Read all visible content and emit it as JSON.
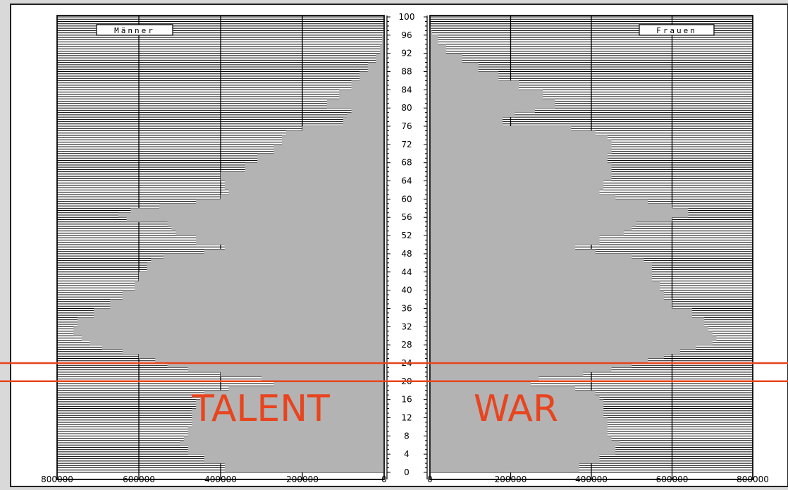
{
  "chart_data": {
    "type": "bar",
    "orientation": "horizontal",
    "layout": "population-pyramid",
    "left_panel_label": "Männer",
    "right_panel_label": "Frauen",
    "y_ticks": [
      "0",
      "4",
      "8",
      "12",
      "16",
      "20",
      "24",
      "28",
      "32",
      "36",
      "40",
      "44",
      "48",
      "52",
      "56",
      "60",
      "64",
      "68",
      "72",
      "76",
      "80",
      "84",
      "88",
      "92",
      "96",
      "100"
    ],
    "left_x_ticks": [
      "800000",
      "600000",
      "400000",
      "200000",
      "0"
    ],
    "right_x_ticks": [
      "0",
      "200000",
      "400000",
      "600000",
      "800000"
    ],
    "x_range": [
      0,
      800000
    ],
    "age_range": [
      0,
      100
    ],
    "grid": true,
    "bar_color": "#b3b3b3",
    "series": [
      {
        "name": "Männer",
        "age_points": [
          0,
          2,
          4,
          6,
          7,
          8,
          10,
          12,
          14,
          16,
          17,
          18,
          19,
          20,
          21,
          22,
          23,
          24,
          25,
          26,
          27,
          28,
          29,
          30,
          31,
          32,
          34,
          36,
          38,
          40,
          42,
          44,
          46,
          47,
          48,
          49,
          50,
          52,
          53,
          54,
          55,
          56,
          57,
          58,
          59,
          60,
          61,
          62,
          64,
          66,
          68,
          70,
          72,
          73,
          74,
          75,
          76,
          77,
          78,
          79,
          80,
          82,
          84,
          86,
          88,
          90,
          92,
          94,
          96,
          97,
          98
        ],
        "values": [
          390000,
          440000,
          480000,
          500000,
          490000,
          480000,
          470000,
          470000,
          460000,
          450000,
          440000,
          380000,
          270000,
          300000,
          400000,
          480000,
          530000,
          560000,
          600000,
          640000,
          690000,
          720000,
          740000,
          760000,
          760000,
          750000,
          710000,
          670000,
          640000,
          610000,
          600000,
          580000,
          570000,
          540000,
          440000,
          390000,
          460000,
          510000,
          520000,
          530000,
          630000,
          650000,
          620000,
          550000,
          460000,
          400000,
          380000,
          390000,
          400000,
          340000,
          310000,
          270000,
          250000,
          250000,
          240000,
          200000,
          100000,
          100000,
          90000,
          80000,
          140000,
          110000,
          80000,
          60000,
          40000,
          20000,
          10000,
          5000,
          2000,
          1000,
          0
        ]
      },
      {
        "name": "Frauen",
        "age_points": [
          0,
          2,
          4,
          6,
          7,
          8,
          10,
          12,
          14,
          16,
          17,
          18,
          19,
          20,
          21,
          22,
          23,
          24,
          25,
          26,
          27,
          28,
          29,
          30,
          31,
          32,
          34,
          36,
          38,
          40,
          42,
          44,
          46,
          47,
          48,
          49,
          50,
          52,
          53,
          54,
          55,
          56,
          57,
          58,
          59,
          60,
          61,
          62,
          64,
          66,
          68,
          70,
          72,
          73,
          74,
          75,
          76,
          77,
          78,
          79,
          80,
          82,
          84,
          86,
          88,
          90,
          92,
          94,
          96,
          97,
          98
        ],
        "values": [
          370000,
          420000,
          460000,
          470000,
          450000,
          440000,
          440000,
          430000,
          430000,
          420000,
          410000,
          360000,
          250000,
          270000,
          380000,
          450000,
          500000,
          540000,
          580000,
          620000,
          660000,
          700000,
          710000,
          700000,
          690000,
          680000,
          650000,
          600000,
          580000,
          570000,
          550000,
          550000,
          530000,
          500000,
          410000,
          360000,
          420000,
          480000,
          500000,
          510000,
          600000,
          640000,
          640000,
          600000,
          540000,
          460000,
          420000,
          430000,
          450000,
          450000,
          440000,
          450000,
          450000,
          440000,
          410000,
          350000,
          180000,
          180000,
          210000,
          260000,
          310000,
          280000,
          220000,
          170000,
          120000,
          80000,
          40000,
          20000,
          5000,
          2000,
          0
        ]
      }
    ]
  },
  "overlay": {
    "band_ages": [
      20,
      24
    ],
    "line_color": "#e8441e",
    "left_text": "TALENT",
    "right_text": "WAR"
  }
}
